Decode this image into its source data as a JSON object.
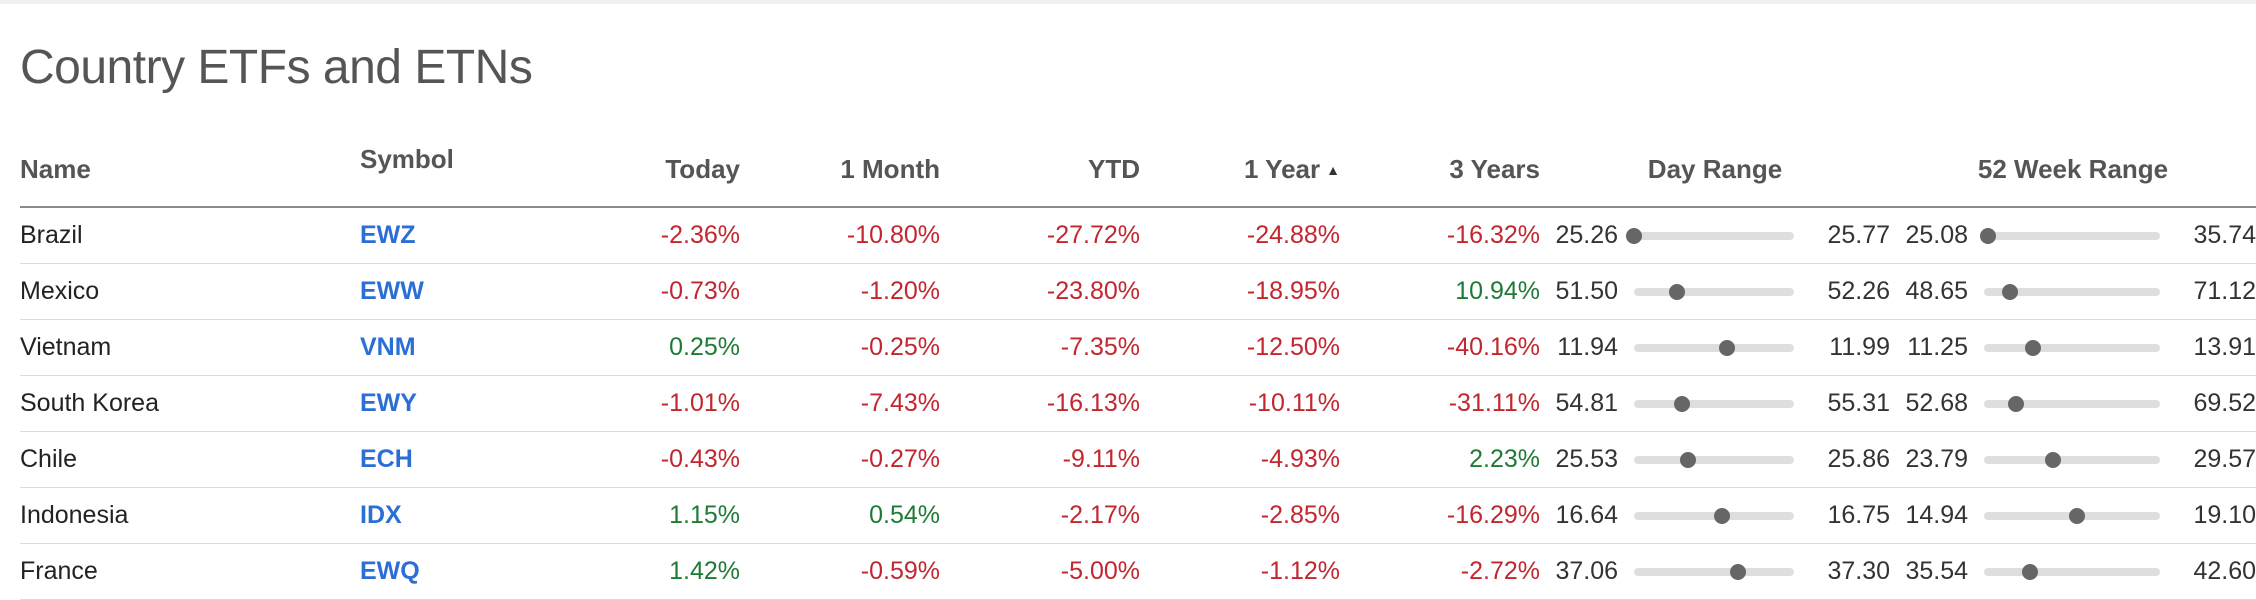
{
  "title": "Country ETFs and ETNs",
  "colors": {
    "negative": "#c2262e",
    "positive": "#1e7b35",
    "link": "#2b6fd6",
    "range_dot": "#666666",
    "range_track": "#dedede"
  },
  "columns": {
    "name": "Name",
    "symbol": "Symbol",
    "today": "Today",
    "month": "1 Month",
    "ytd": "YTD",
    "year": "1 Year",
    "year_sort_icon": "sort-ascending-icon",
    "three_years": "3 Years",
    "day_range": "Day Range",
    "week52_range": "52 Week Range"
  },
  "rows": [
    {
      "name": "Brazil",
      "symbol": "EWZ",
      "today": "-2.36%",
      "month": "-10.80%",
      "ytd": "-27.72%",
      "year": "-24.88%",
      "three_years": "-16.32%",
      "day_low": "25.26",
      "day_high": "25.77",
      "day_pos": 0.0,
      "wk_low": "25.08",
      "wk_high": "35.74",
      "wk_pos": 0.02
    },
    {
      "name": "Mexico",
      "symbol": "EWW",
      "today": "-0.73%",
      "month": "-1.20%",
      "ytd": "-23.80%",
      "year": "-18.95%",
      "three_years": "10.94%",
      "day_low": "51.50",
      "day_high": "52.26",
      "day_pos": 0.27,
      "wk_low": "48.65",
      "wk_high": "71.12",
      "wk_pos": 0.15
    },
    {
      "name": "Vietnam",
      "symbol": "VNM",
      "today": "0.25%",
      "month": "-0.25%",
      "ytd": "-7.35%",
      "year": "-12.50%",
      "three_years": "-40.16%",
      "day_low": "11.94",
      "day_high": "11.99",
      "day_pos": 0.58,
      "wk_low": "11.25",
      "wk_high": "13.91",
      "wk_pos": 0.28
    },
    {
      "name": "South Korea",
      "symbol": "EWY",
      "today": "-1.01%",
      "month": "-7.43%",
      "ytd": "-16.13%",
      "year": "-10.11%",
      "three_years": "-31.11%",
      "day_low": "54.81",
      "day_high": "55.31",
      "day_pos": 0.3,
      "wk_low": "52.68",
      "wk_high": "69.52",
      "wk_pos": 0.18
    },
    {
      "name": "Chile",
      "symbol": "ECH",
      "today": "-0.43%",
      "month": "-0.27%",
      "ytd": "-9.11%",
      "year": "-4.93%",
      "three_years": "2.23%",
      "day_low": "25.53",
      "day_high": "25.86",
      "day_pos": 0.34,
      "wk_low": "23.79",
      "wk_high": "29.57",
      "wk_pos": 0.39
    },
    {
      "name": "Indonesia",
      "symbol": "IDX",
      "today": "1.15%",
      "month": "0.54%",
      "ytd": "-2.17%",
      "year": "-2.85%",
      "three_years": "-16.29%",
      "day_low": "16.64",
      "day_high": "16.75",
      "day_pos": 0.55,
      "wk_low": "14.94",
      "wk_high": "19.10",
      "wk_pos": 0.53
    },
    {
      "name": "France",
      "symbol": "EWQ",
      "today": "1.42%",
      "month": "-0.59%",
      "ytd": "-5.00%",
      "year": "-1.12%",
      "three_years": "-2.72%",
      "day_low": "37.06",
      "day_high": "37.30",
      "day_pos": 0.65,
      "wk_low": "35.54",
      "wk_high": "42.60",
      "wk_pos": 0.26
    }
  ]
}
